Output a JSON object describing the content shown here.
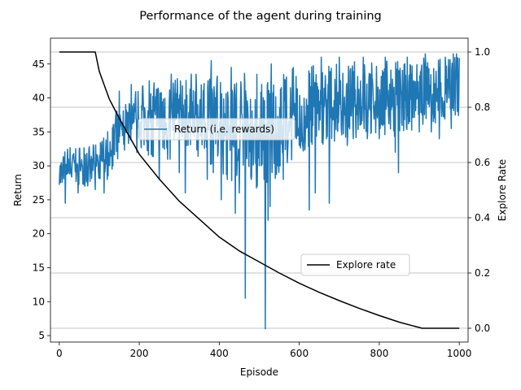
{
  "chart_data": {
    "type": "line",
    "title": "Performance of the agent during training",
    "xlabel": "Episode",
    "ylabel_left": "Return",
    "ylabel_right": "Explore Rate",
    "xlim": [
      -22,
      1022
    ],
    "ylim_left": [
      4.05,
      48.8
    ],
    "ylim_right": [
      -0.05,
      1.05
    ],
    "x_ticks": [
      0,
      200,
      400,
      600,
      800,
      1000
    ],
    "y_left_ticks": [
      5,
      10,
      15,
      20,
      25,
      30,
      35,
      40,
      45
    ],
    "y_right_ticks": [
      0.0,
      0.2,
      0.4,
      0.6,
      0.8,
      1.0
    ],
    "y_right_tick_labels": [
      "0.0",
      "0.2",
      "0.4",
      "0.6",
      "0.8",
      "1.0"
    ],
    "grid": "horizontal lines at right-axis ticks",
    "series": [
      {
        "name": "Return (i.e. rewards)",
        "axis": "left",
        "color": "#1f77b4",
        "x": [
          0,
          20,
          40,
          60,
          80,
          100,
          120,
          140,
          160,
          180,
          200,
          220,
          240,
          260,
          280,
          300,
          320,
          340,
          360,
          380,
          400,
          420,
          440,
          460,
          480,
          500,
          520,
          540,
          560,
          580,
          600,
          620,
          640,
          660,
          680,
          700,
          720,
          740,
          760,
          780,
          800,
          820,
          840,
          860,
          880,
          900,
          920,
          940,
          960,
          980,
          1000
        ],
        "y": [
          29,
          29.5,
          30,
          29.5,
          30,
          30.5,
          31.5,
          33,
          35,
          36,
          36.5,
          37,
          37,
          36.5,
          36.5,
          37,
          37,
          37,
          36.5,
          36.5,
          36.5,
          36,
          35.5,
          35,
          35,
          34.5,
          34.5,
          35.5,
          36,
          36.5,
          37,
          37.5,
          38,
          38.5,
          38.5,
          39,
          39,
          39,
          39,
          39,
          39,
          39.5,
          39.5,
          40,
          40,
          40,
          40,
          40.5,
          40.5,
          41,
          41
        ],
        "y_low": [
          27,
          26,
          27,
          27,
          26.5,
          27,
          28,
          30,
          32,
          32,
          31.5,
          31,
          30,
          29,
          30,
          31,
          32,
          32,
          30,
          30,
          29,
          28,
          26,
          25,
          27,
          26,
          27,
          28,
          30,
          30,
          31,
          32,
          32,
          33,
          33,
          34,
          34,
          34,
          34,
          34,
          34,
          34.5,
          34,
          34,
          35,
          35,
          36,
          36,
          36,
          36,
          37
        ],
        "y_high": [
          31,
          33,
          33,
          33,
          33,
          33.5,
          35,
          38,
          39,
          41,
          42,
          42,
          42.5,
          42.5,
          43,
          43,
          43,
          43.5,
          43.5,
          44,
          44,
          44,
          44,
          44,
          44,
          44,
          44,
          44,
          44.5,
          44.5,
          44.5,
          44.5,
          45,
          45,
          45,
          45,
          45,
          45.5,
          45.5,
          45.5,
          45.5,
          45.5,
          45.5,
          45.5,
          45.5,
          46,
          46,
          46,
          46,
          46.5,
          46.5
        ],
        "spikes": [
          {
            "x": 15,
            "y": 24.5
          },
          {
            "x": 47,
            "y": 26
          },
          {
            "x": 90,
            "y": 26.5
          },
          {
            "x": 112,
            "y": 26
          },
          {
            "x": 120,
            "y": 28
          },
          {
            "x": 150,
            "y": 41
          },
          {
            "x": 180,
            "y": 42
          },
          {
            "x": 225,
            "y": 42.5
          },
          {
            "x": 250,
            "y": 28
          },
          {
            "x": 280,
            "y": 43.5
          },
          {
            "x": 300,
            "y": 29
          },
          {
            "x": 315,
            "y": 26
          },
          {
            "x": 330,
            "y": 43.5
          },
          {
            "x": 370,
            "y": 28
          },
          {
            "x": 380,
            "y": 44
          },
          {
            "x": 385,
            "y": 29
          },
          {
            "x": 380,
            "y": 45.5
          },
          {
            "x": 405,
            "y": 25
          },
          {
            "x": 420,
            "y": 28
          },
          {
            "x": 430,
            "y": 44.5
          },
          {
            "x": 440,
            "y": 23
          },
          {
            "x": 450,
            "y": 26
          },
          {
            "x": 465,
            "y": 10.5
          },
          {
            "x": 480,
            "y": 28
          },
          {
            "x": 495,
            "y": 27
          },
          {
            "x": 505,
            "y": 30
          },
          {
            "x": 515,
            "y": 6
          },
          {
            "x": 522,
            "y": 22
          },
          {
            "x": 527,
            "y": 24
          },
          {
            "x": 530,
            "y": 45
          },
          {
            "x": 545,
            "y": 30
          },
          {
            "x": 560,
            "y": 28
          },
          {
            "x": 575,
            "y": 35
          },
          {
            "x": 585,
            "y": 44.5
          },
          {
            "x": 600,
            "y": 33
          },
          {
            "x": 625,
            "y": 23.5
          },
          {
            "x": 640,
            "y": 26
          },
          {
            "x": 655,
            "y": 46
          },
          {
            "x": 675,
            "y": 24.5
          },
          {
            "x": 700,
            "y": 46
          },
          {
            "x": 720,
            "y": 33
          },
          {
            "x": 735,
            "y": 34
          },
          {
            "x": 760,
            "y": 46
          },
          {
            "x": 770,
            "y": 34
          },
          {
            "x": 780,
            "y": 35
          },
          {
            "x": 800,
            "y": 34
          },
          {
            "x": 815,
            "y": 46
          },
          {
            "x": 840,
            "y": 32
          },
          {
            "x": 848,
            "y": 29
          },
          {
            "x": 870,
            "y": 46
          },
          {
            "x": 900,
            "y": 35
          },
          {
            "x": 915,
            "y": 46.5
          },
          {
            "x": 930,
            "y": 35
          },
          {
            "x": 950,
            "y": 34
          },
          {
            "x": 965,
            "y": 46
          },
          {
            "x": 980,
            "y": 35.5
          },
          {
            "x": 985,
            "y": 46.5
          },
          {
            "x": 993,
            "y": 46.5
          }
        ]
      },
      {
        "name": "Explore rate",
        "axis": "right",
        "color": "#000000",
        "x": [
          0,
          90,
          100,
          125,
          150,
          200,
          250,
          300,
          350,
          400,
          450,
          500,
          550,
          600,
          650,
          700,
          750,
          800,
          850,
          907,
          1000
        ],
        "y": [
          1.0,
          1.0,
          0.93,
          0.83,
          0.76,
          0.63,
          0.54,
          0.46,
          0.395,
          0.33,
          0.28,
          0.24,
          0.2,
          0.163,
          0.13,
          0.1,
          0.072,
          0.046,
          0.022,
          0.0,
          0.0
        ]
      }
    ]
  }
}
